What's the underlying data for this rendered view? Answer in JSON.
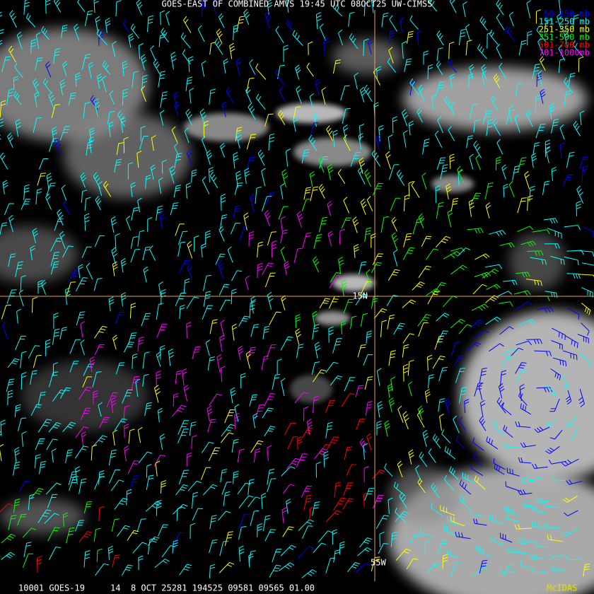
{
  "header": {
    "title": "GOES-EAST OF COMBINED AMVS 19:45 UTC 08OCT25 UW-CIMSS"
  },
  "legend": [
    {
      "label": "50-150 mb",
      "color": "#0000ff"
    },
    {
      "label": "151-250 mb",
      "color": "#00ffff"
    },
    {
      "label": "251-350 mb",
      "color": "#ffff00"
    },
    {
      "label": "351-500 mb",
      "color": "#00ff00"
    },
    {
      "label": "501-700 mb",
      "color": "#ff0000"
    },
    {
      "label": "701-1000mb",
      "color": "#ff00ff"
    }
  ],
  "map": {
    "latitude_label": "15N",
    "longitude_label": "55W"
  },
  "footer": {
    "info": "10001 GOES-19     14  8 OCT 25281 194525 09581 09565 01.00",
    "software": "McIDAS"
  }
}
